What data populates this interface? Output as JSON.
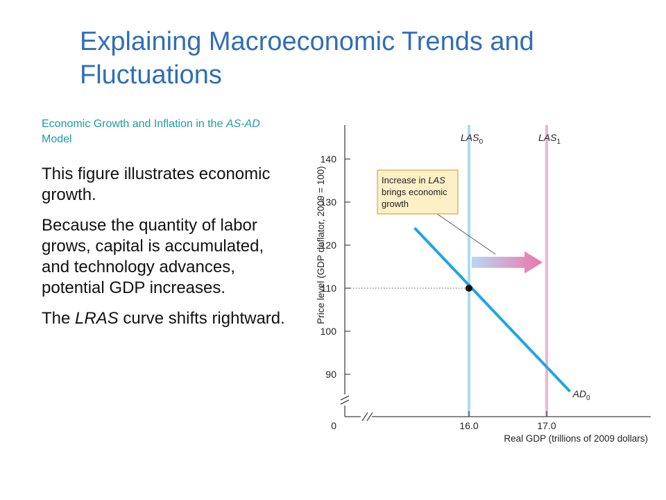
{
  "slide": {
    "title": "Explaining Macroeconomic Trends and Fluctuations",
    "subtitle_part1": "Economic Growth and Inflation in the ",
    "subtitle_part2": "AS-AD",
    "subtitle_part3": " Model",
    "paragraph1": "This figure illustrates economic growth.",
    "paragraph2": "Because the quantity of labor grows, capital is accumulated, and technology advances, potential GDP increases.",
    "paragraph3_part1": "The ",
    "paragraph3_part2": "LRAS",
    "paragraph3_part3": " curve shifts rightward."
  },
  "chart_data": {
    "type": "line",
    "xlabel": "Real GDP (trillions of 2009 dollars)",
    "ylabel": "Price level (GDP deflator, 2009 = 100)",
    "x_ticks": [
      {
        "value": 16.0,
        "label": "16.0"
      },
      {
        "value": 17.0,
        "label": "17.0"
      }
    ],
    "y_ticks": [
      90,
      100,
      110,
      120,
      130,
      140
    ],
    "origin_label": "0",
    "series": [
      {
        "name": "LAS0",
        "label_main": "LAS",
        "label_sub": "0",
        "kind": "vertical",
        "x": 16.0,
        "color": "#a9dcf3"
      },
      {
        "name": "LAS1",
        "label_main": "LAS",
        "label_sub": "1",
        "kind": "vertical",
        "x": 17.0,
        "color": "#f3b3cf"
      },
      {
        "name": "AD0",
        "label_main": "AD",
        "label_sub": "0",
        "kind": "line",
        "points": [
          [
            15.3,
            124
          ],
          [
            17.3,
            86
          ]
        ],
        "color": "#1ea5e6"
      }
    ],
    "equilibrium": {
      "x": 16.0,
      "y": 110
    },
    "annotation": {
      "lines": [
        [
          {
            "text": "Increase in ",
            "italic": false
          },
          {
            "text": "LAS",
            "italic": true
          }
        ],
        [
          {
            "text": "brings economic",
            "italic": false
          }
        ],
        [
          {
            "text": "growth",
            "italic": false
          }
        ]
      ],
      "fill": "#fdf0c6",
      "border": "#d9a441"
    },
    "arrow": {
      "from_x": 16.0,
      "to_x": 17.0,
      "y": 116,
      "color_start": "#b7d7f1",
      "color_end": "#ee74ab"
    },
    "colors": {
      "axis": "#444444",
      "guide": "#555555",
      "point": "#111111"
    }
  }
}
